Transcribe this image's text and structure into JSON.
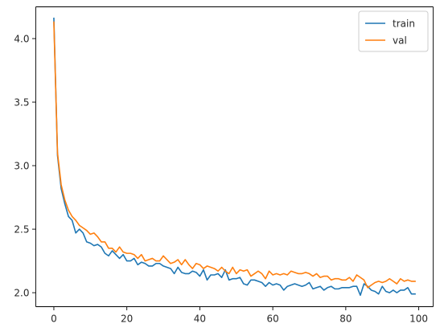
{
  "chart_data": {
    "type": "line",
    "title": "",
    "xlabel": "",
    "ylabel": "",
    "xlim": [
      -4.95,
      103.95
    ],
    "ylim": [
      1.89,
      4.25
    ],
    "xticks": [
      0,
      20,
      40,
      60,
      80,
      100
    ],
    "yticks": [
      2.0,
      2.5,
      3.0,
      3.5,
      4.0
    ],
    "xtick_labels": [
      "0",
      "20",
      "40",
      "60",
      "80",
      "100"
    ],
    "ytick_labels": [
      "2.0",
      "2.5",
      "3.0",
      "3.5",
      "4.0"
    ],
    "grid": false,
    "legend_position": "upper right",
    "x": [
      0,
      1,
      2,
      3,
      4,
      5,
      6,
      7,
      8,
      9,
      10,
      11,
      12,
      13,
      14,
      15,
      16,
      17,
      18,
      19,
      20,
      21,
      22,
      23,
      24,
      25,
      26,
      27,
      28,
      29,
      30,
      31,
      32,
      33,
      34,
      35,
      36,
      37,
      38,
      39,
      40,
      41,
      42,
      43,
      44,
      45,
      46,
      47,
      48,
      49,
      50,
      51,
      52,
      53,
      54,
      55,
      56,
      57,
      58,
      59,
      60,
      61,
      62,
      63,
      64,
      65,
      66,
      67,
      68,
      69,
      70,
      71,
      72,
      73,
      74,
      75,
      76,
      77,
      78,
      79,
      80,
      81,
      82,
      83,
      84,
      85,
      86,
      87,
      88,
      89,
      90,
      91,
      92,
      93,
      94,
      95,
      96,
      97,
      98,
      99
    ],
    "series": [
      {
        "name": "train",
        "color": "#1f77b4",
        "values": [
          4.16,
          3.08,
          2.82,
          2.7,
          2.6,
          2.57,
          2.47,
          2.5,
          2.47,
          2.4,
          2.39,
          2.37,
          2.38,
          2.36,
          2.31,
          2.29,
          2.33,
          2.3,
          2.27,
          2.3,
          2.25,
          2.25,
          2.27,
          2.22,
          2.24,
          2.23,
          2.21,
          2.21,
          2.23,
          2.23,
          2.21,
          2.2,
          2.19,
          2.15,
          2.2,
          2.16,
          2.15,
          2.15,
          2.17,
          2.16,
          2.13,
          2.18,
          2.1,
          2.14,
          2.14,
          2.15,
          2.12,
          2.18,
          2.1,
          2.11,
          2.11,
          2.12,
          2.07,
          2.06,
          2.1,
          2.1,
          2.09,
          2.08,
          2.05,
          2.08,
          2.06,
          2.07,
          2.06,
          2.02,
          2.05,
          2.06,
          2.07,
          2.06,
          2.05,
          2.06,
          2.08,
          2.03,
          2.04,
          2.05,
          2.02,
          2.04,
          2.05,
          2.03,
          2.03,
          2.04,
          2.04,
          2.04,
          2.05,
          2.05,
          1.98,
          2.07,
          2.05,
          2.02,
          2.01,
          1.99,
          2.05,
          2.01,
          2.0,
          2.02,
          2.0,
          2.02,
          2.02,
          2.04,
          1.99,
          1.99
        ]
      },
      {
        "name": "val",
        "color": "#ff7f0e",
        "values": [
          4.13,
          3.1,
          2.85,
          2.73,
          2.65,
          2.6,
          2.57,
          2.53,
          2.51,
          2.49,
          2.46,
          2.47,
          2.44,
          2.4,
          2.4,
          2.35,
          2.35,
          2.32,
          2.36,
          2.32,
          2.31,
          2.31,
          2.3,
          2.27,
          2.3,
          2.25,
          2.26,
          2.27,
          2.25,
          2.25,
          2.29,
          2.26,
          2.23,
          2.24,
          2.26,
          2.22,
          2.26,
          2.22,
          2.19,
          2.23,
          2.22,
          2.19,
          2.21,
          2.2,
          2.19,
          2.17,
          2.2,
          2.17,
          2.15,
          2.2,
          2.15,
          2.18,
          2.17,
          2.18,
          2.13,
          2.15,
          2.17,
          2.15,
          2.11,
          2.17,
          2.14,
          2.15,
          2.14,
          2.15,
          2.14,
          2.17,
          2.16,
          2.15,
          2.15,
          2.16,
          2.15,
          2.13,
          2.15,
          2.12,
          2.13,
          2.13,
          2.1,
          2.11,
          2.11,
          2.1,
          2.1,
          2.12,
          2.09,
          2.14,
          2.12,
          2.1,
          2.04,
          2.06,
          2.08,
          2.09,
          2.08,
          2.09,
          2.11,
          2.09,
          2.07,
          2.11,
          2.09,
          2.1,
          2.09,
          2.09
        ]
      }
    ]
  }
}
